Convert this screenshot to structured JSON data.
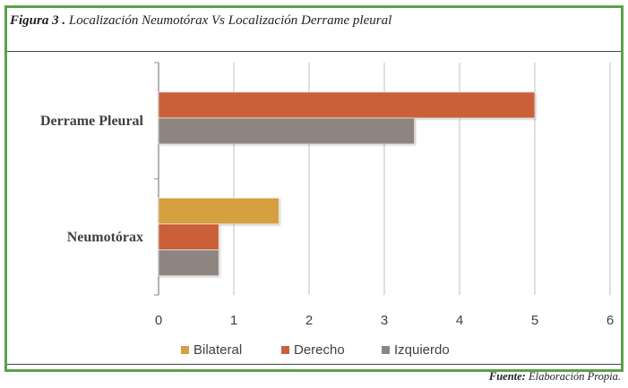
{
  "figure": {
    "title_lead": "Figura 3 .",
    "title_rest": "Localización Neumotórax Vs Localización Derrame pleural",
    "source_label": "Fuente:",
    "source_text": "Elaboración Propia."
  },
  "colors": {
    "frame": "#5aa14a",
    "grid": "#bfbfbf",
    "axis": "#8c8c8c",
    "text": "#404040"
  },
  "chart_data": {
    "type": "bar",
    "orientation": "horizontal",
    "categories": [
      "Derrame Pleural",
      "Neumotórax"
    ],
    "series": [
      {
        "name": "Bilateral",
        "color": "#d4a040",
        "values": [
          0,
          1.6
        ]
      },
      {
        "name": "Derecho",
        "color": "#c9603a",
        "values": [
          5,
          0.8
        ]
      },
      {
        "name": "Izquierdo",
        "color": "#8f8580",
        "values": [
          3.4,
          0.8
        ]
      }
    ],
    "xlim": [
      0,
      6
    ],
    "xticks": [
      "0",
      "1",
      "2",
      "3",
      "4",
      "5",
      "6"
    ],
    "grid": true,
    "legend_position": "bottom"
  }
}
